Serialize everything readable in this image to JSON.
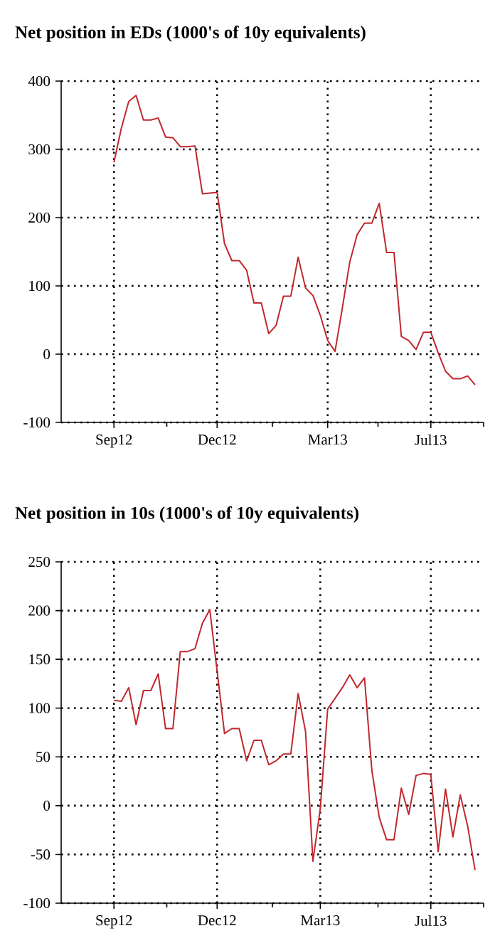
{
  "chart_data": [
    {
      "type": "line",
      "title": "Net position in EDs (1000's of 10y equivalents)",
      "color": "#c0282d",
      "grid": true,
      "categories": [
        "Sep12",
        null,
        null,
        null,
        null,
        null,
        null,
        null,
        null,
        null,
        null,
        null,
        null,
        null,
        "Dec12",
        null,
        null,
        null,
        null,
        null,
        null,
        null,
        null,
        null,
        null,
        null,
        null,
        null,
        null,
        "Mar13",
        null,
        null,
        null,
        null,
        null,
        null,
        null,
        null,
        null,
        null,
        null,
        null,
        null,
        "Jul13",
        null,
        null,
        null,
        null,
        null,
        null
      ],
      "values": [
        281,
        331,
        370,
        379,
        343,
        343,
        346,
        318,
        317,
        304,
        304,
        305,
        235,
        236,
        237,
        162,
        137,
        137,
        123,
        75,
        75,
        30,
        42,
        85,
        85,
        142,
        97,
        86,
        57,
        20,
        4,
        68,
        135,
        175,
        192,
        192,
        221,
        149,
        149,
        26,
        20,
        7,
        32,
        32,
        2,
        -25,
        -36,
        -36,
        -32,
        -45
      ],
      "ylim": [
        -100,
        400
      ],
      "yticks": [
        -100,
        0,
        100,
        200,
        300,
        400
      ]
    },
    {
      "type": "line",
      "title": "Net position in 10s (1000's of 10y equivalents)",
      "color": "#c0282d",
      "grid": true,
      "categories": [
        "Sep12",
        null,
        null,
        null,
        null,
        null,
        null,
        null,
        null,
        null,
        null,
        null,
        null,
        null,
        "Dec12",
        null,
        null,
        null,
        null,
        null,
        null,
        null,
        null,
        null,
        null,
        null,
        null,
        null,
        "Mar13",
        null,
        null,
        null,
        null,
        null,
        null,
        null,
        null,
        null,
        null,
        null,
        null,
        null,
        null,
        "Jul13",
        null,
        null,
        null,
        null,
        null,
        null
      ],
      "values": [
        108,
        107,
        121,
        83,
        118,
        118,
        135,
        79,
        79,
        158,
        158,
        161,
        187,
        201,
        138,
        74,
        79,
        79,
        46,
        67,
        67,
        42,
        46,
        53,
        53,
        115,
        76,
        -57,
        -3,
        99,
        110,
        121,
        134,
        121,
        131,
        36,
        -12,
        -35,
        -35,
        18,
        -9,
        31,
        33,
        32,
        -47,
        17,
        -32,
        11,
        -21,
        -66
      ],
      "ylim": [
        -100,
        250
      ],
      "yticks": [
        -100,
        -50,
        0,
        50,
        100,
        150,
        200,
        250
      ]
    }
  ]
}
